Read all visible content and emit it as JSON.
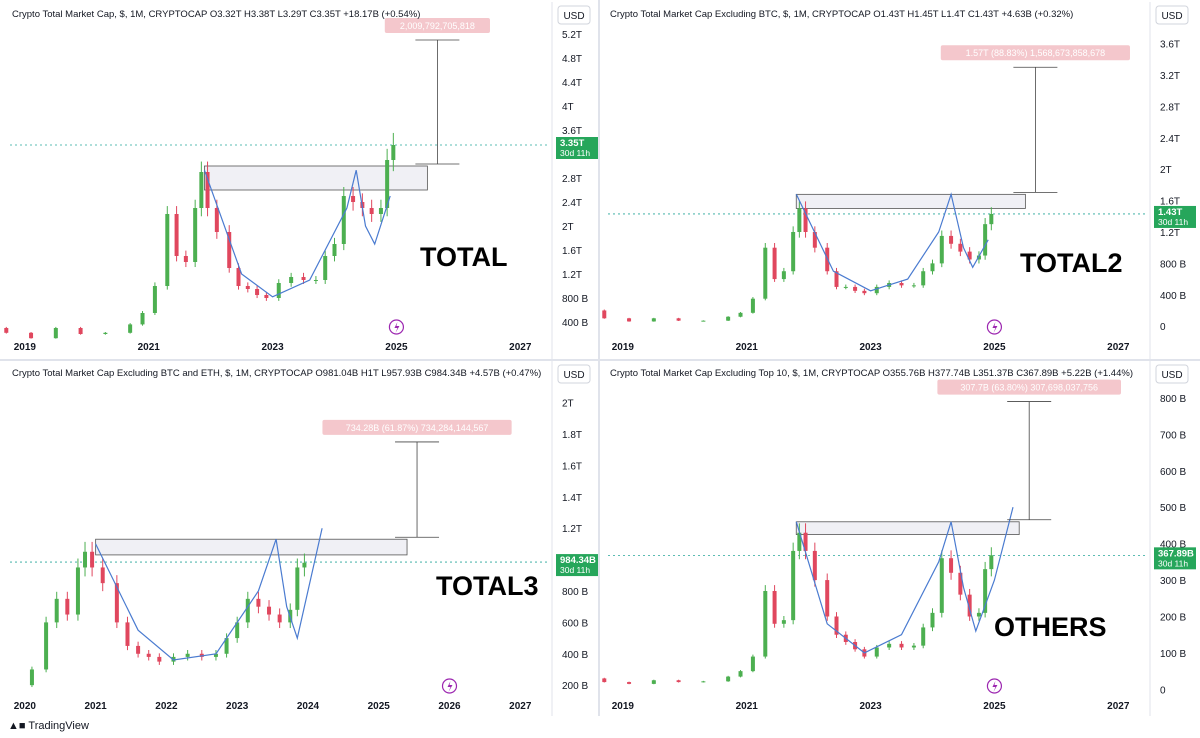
{
  "footer": {
    "brand": "TradingView"
  },
  "panels": [
    {
      "id": "p1",
      "header": "Crypto Total Market Cap, $, 1M, CRYPTOCAP  O3.32T  H3.38T  L3.29T  C3.35T  +18.17B (+0.54%)",
      "currency": "USD",
      "big_label": "TOTAL",
      "price_tag": "3.35T",
      "countdown": "30d 11h",
      "measure_label": "2,009,792,705,818"
    },
    {
      "id": "p2",
      "header": "Crypto Total Market Cap Excluding BTC, $, 1M, CRYPTOCAP  O1.43T  H1.45T  L1.4T  C1.43T  +4.63B (+0.32%)",
      "currency": "USD",
      "big_label": "TOTAL2",
      "price_tag": "1.43T",
      "countdown": "30d 11h",
      "measure_label": "1.57T (88.83%) 1,568,673,858,678"
    },
    {
      "id": "p3",
      "header": "Crypto Total Market Cap Excluding BTC and ETH, $, 1M, CRYPTOCAP  O981.04B  H1T  L957.93B  C984.34B  +4.57B (+0.47%)",
      "currency": "USD",
      "big_label": "TOTAL3",
      "price_tag": "984.34B",
      "countdown": "30d 11h",
      "measure_label": "734.28B (61.87%) 734,284,144,567"
    },
    {
      "id": "p4",
      "header": "Crypto Total Market Cap Excluding Top 10, $, 1M, CRYPTOCAP  O355.76B  H377.74B  L351.37B  C367.89B  +5.22B (+1.44%)",
      "currency": "USD",
      "big_label": "OTHERS",
      "price_tag": "367.89B",
      "countdown": "30d 11h",
      "measure_label": "307.7B (63.80%) 307,698,037,756"
    }
  ],
  "chart_data": [
    {
      "type": "candlestick",
      "title": "Crypto Total Market Cap, $, 1M, CRYPTOCAP",
      "label": "TOTAL",
      "x_ticks": [
        "2019",
        "2021",
        "2023",
        "2025",
        "2027"
      ],
      "y_ticks": [
        "400 B",
        "800 B",
        "1.2T",
        "1.6T",
        "2T",
        "2.4T",
        "2.8T",
        "3.2T",
        "3.6T",
        "4T",
        "4.4T",
        "4.8T",
        "5.2T"
      ],
      "ylim": [
        0.2,
        5.3
      ],
      "unit": "T",
      "last_price": 3.35,
      "target_price": 5.1,
      "zone": {
        "x_start": 2021.9,
        "x_end": 2025.5,
        "low": 2.6,
        "high": 3.0
      },
      "cup_curve": [
        [
          2021.9,
          2.93
        ],
        [
          2022.5,
          1.2
        ],
        [
          2023.0,
          0.82
        ],
        [
          2023.6,
          1.1
        ],
        [
          2024.2,
          2.3
        ],
        [
          2024.35,
          2.93
        ],
        [
          2024.5,
          2.0
        ],
        [
          2024.65,
          1.7
        ],
        [
          2024.9,
          2.5
        ]
      ],
      "points": [
        [
          2017.9,
          0.4
        ],
        [
          2018.3,
          0.3
        ],
        [
          2018.7,
          0.22
        ],
        [
          2019.1,
          0.13
        ],
        [
          2019.5,
          0.3
        ],
        [
          2019.9,
          0.2
        ],
        [
          2020.3,
          0.22
        ],
        [
          2020.7,
          0.36
        ],
        [
          2020.9,
          0.55
        ],
        [
          2021.1,
          1.0
        ],
        [
          2021.3,
          2.2
        ],
        [
          2021.45,
          1.5
        ],
        [
          2021.6,
          1.4
        ],
        [
          2021.75,
          2.3
        ],
        [
          2021.85,
          2.9
        ],
        [
          2021.95,
          2.3
        ],
        [
          2022.1,
          1.9
        ],
        [
          2022.3,
          1.3
        ],
        [
          2022.45,
          1.0
        ],
        [
          2022.6,
          0.95
        ],
        [
          2022.75,
          0.85
        ],
        [
          2022.9,
          0.8
        ],
        [
          2023.1,
          1.05
        ],
        [
          2023.3,
          1.15
        ],
        [
          2023.5,
          1.1
        ],
        [
          2023.7,
          1.1
        ],
        [
          2023.85,
          1.5
        ],
        [
          2024.0,
          1.7
        ],
        [
          2024.15,
          2.5
        ],
        [
          2024.3,
          2.4
        ],
        [
          2024.45,
          2.3
        ],
        [
          2024.6,
          2.2
        ],
        [
          2024.75,
          2.3
        ],
        [
          2024.85,
          3.1
        ],
        [
          2024.95,
          3.35
        ]
      ]
    },
    {
      "type": "candlestick",
      "title": "Crypto Total Market Cap Excluding BTC, $, 1M, CRYPTOCAP",
      "label": "TOTAL2",
      "x_ticks": [
        "2019",
        "2021",
        "2023",
        "2025",
        "2027"
      ],
      "y_ticks": [
        "0",
        "400 B",
        "800 B",
        "1.2T",
        "1.6T",
        "2T",
        "2.4T",
        "2.8T",
        "3.2T",
        "3.6T"
      ],
      "ylim": [
        -0.1,
        3.8
      ],
      "unit": "T",
      "last_price": 1.43,
      "target_price": 3.3,
      "zone": {
        "x_start": 2021.8,
        "x_end": 2025.5,
        "low": 1.5,
        "high": 1.68
      },
      "cup_curve": [
        [
          2021.8,
          1.68
        ],
        [
          2022.4,
          0.7
        ],
        [
          2023.0,
          0.45
        ],
        [
          2023.6,
          0.6
        ],
        [
          2024.1,
          1.2
        ],
        [
          2024.3,
          1.68
        ],
        [
          2024.5,
          1.0
        ],
        [
          2024.65,
          0.75
        ],
        [
          2024.9,
          1.1
        ]
      ],
      "points": [
        [
          2017.9,
          0.35
        ],
        [
          2018.3,
          0.2
        ],
        [
          2018.7,
          0.1
        ],
        [
          2019.1,
          0.06
        ],
        [
          2019.5,
          0.1
        ],
        [
          2019.9,
          0.07
        ],
        [
          2020.3,
          0.07
        ],
        [
          2020.7,
          0.12
        ],
        [
          2020.9,
          0.17
        ],
        [
          2021.1,
          0.35
        ],
        [
          2021.3,
          1.0
        ],
        [
          2021.45,
          0.6
        ],
        [
          2021.6,
          0.7
        ],
        [
          2021.75,
          1.2
        ],
        [
          2021.85,
          1.5
        ],
        [
          2021.95,
          1.2
        ],
        [
          2022.1,
          1.0
        ],
        [
          2022.3,
          0.7
        ],
        [
          2022.45,
          0.5
        ],
        [
          2022.6,
          0.5
        ],
        [
          2022.75,
          0.45
        ],
        [
          2022.9,
          0.42
        ],
        [
          2023.1,
          0.5
        ],
        [
          2023.3,
          0.55
        ],
        [
          2023.5,
          0.52
        ],
        [
          2023.7,
          0.52
        ],
        [
          2023.85,
          0.7
        ],
        [
          2024.0,
          0.8
        ],
        [
          2024.15,
          1.15
        ],
        [
          2024.3,
          1.05
        ],
        [
          2024.45,
          0.95
        ],
        [
          2024.6,
          0.85
        ],
        [
          2024.75,
          0.9
        ],
        [
          2024.85,
          1.3
        ],
        [
          2024.95,
          1.43
        ]
      ]
    },
    {
      "type": "candlestick",
      "title": "Crypto Total Market Cap Excluding BTC and ETH, $, 1M, CRYPTOCAP",
      "label": "TOTAL3",
      "x_ticks": [
        "2020",
        "2021",
        "2022",
        "2023",
        "2024",
        "2025",
        "2026",
        "2027"
      ],
      "y_ticks": [
        "200 B",
        "400 B",
        "600 B",
        "800 B",
        "1T",
        "1.2T",
        "1.4T",
        "1.6T",
        "1.8T",
        "2T"
      ],
      "ylim": [
        0.15,
        2.1
      ],
      "unit": "T",
      "last_price": 0.98434,
      "target_price": 1.75,
      "zone": {
        "x_start": 2021.0,
        "x_end": 2025.4,
        "low": 1.03,
        "high": 1.13
      },
      "cup_curve": [
        [
          2021.0,
          1.1
        ],
        [
          2021.6,
          0.55
        ],
        [
          2022.1,
          0.36
        ],
        [
          2022.7,
          0.4
        ],
        [
          2023.3,
          0.8
        ],
        [
          2023.55,
          1.13
        ],
        [
          2023.7,
          0.7
        ],
        [
          2023.85,
          0.5
        ],
        [
          2024.2,
          1.2
        ]
      ],
      "points": [
        [
          2019.9,
          0.2
        ],
        [
          2020.1,
          0.3
        ],
        [
          2020.3,
          0.6
        ],
        [
          2020.45,
          0.75
        ],
        [
          2020.6,
          0.65
        ],
        [
          2020.75,
          0.95
        ],
        [
          2020.85,
          1.05
        ],
        [
          2020.95,
          0.95
        ],
        [
          2021.1,
          0.85
        ],
        [
          2021.3,
          0.6
        ],
        [
          2021.45,
          0.45
        ],
        [
          2021.6,
          0.4
        ],
        [
          2021.75,
          0.38
        ],
        [
          2021.9,
          0.35
        ],
        [
          2022.1,
          0.38
        ],
        [
          2022.3,
          0.4
        ],
        [
          2022.5,
          0.38
        ],
        [
          2022.7,
          0.4
        ],
        [
          2022.85,
          0.5
        ],
        [
          2023.0,
          0.6
        ],
        [
          2023.15,
          0.75
        ],
        [
          2023.3,
          0.7
        ],
        [
          2023.45,
          0.65
        ],
        [
          2023.6,
          0.6
        ],
        [
          2023.75,
          0.68
        ],
        [
          2023.85,
          0.95
        ],
        [
          2023.95,
          0.98
        ]
      ]
    },
    {
      "type": "candlestick",
      "title": "Crypto Total Market Cap Excluding Top 10, $, 1M, CRYPTOCAP",
      "label": "OTHERS",
      "x_ticks": [
        "2019",
        "2021",
        "2023",
        "2025",
        "2027"
      ],
      "y_ticks": [
        "0",
        "100 B",
        "200 B",
        "300 B",
        "400 B",
        "500 B",
        "600 B",
        "700 B",
        "800 B"
      ],
      "ylim": [
        -10,
        830
      ],
      "unit": "B",
      "last_price": 367.89,
      "target_price": 790,
      "zone": {
        "x_start": 2021.8,
        "x_end": 2025.4,
        "low": 425,
        "high": 460
      },
      "cup_curve": [
        [
          2021.8,
          460
        ],
        [
          2022.3,
          180
        ],
        [
          2022.9,
          100
        ],
        [
          2023.5,
          150
        ],
        [
          2024.1,
          350
        ],
        [
          2024.3,
          460
        ],
        [
          2024.5,
          280
        ],
        [
          2024.7,
          160
        ],
        [
          2025.0,
          300
        ],
        [
          2025.3,
          500
        ]
      ],
      "points": [
        [
          2017.7,
          20
        ],
        [
          2017.9,
          50
        ],
        [
          2018.1,
          45
        ],
        [
          2018.3,
          30
        ],
        [
          2018.7,
          20
        ],
        [
          2019.1,
          15
        ],
        [
          2019.5,
          25
        ],
        [
          2019.9,
          20
        ],
        [
          2020.3,
          22
        ],
        [
          2020.7,
          35
        ],
        [
          2020.9,
          50
        ],
        [
          2021.1,
          90
        ],
        [
          2021.3,
          270
        ],
        [
          2021.45,
          180
        ],
        [
          2021.6,
          190
        ],
        [
          2021.75,
          380
        ],
        [
          2021.85,
          430
        ],
        [
          2021.95,
          380
        ],
        [
          2022.1,
          300
        ],
        [
          2022.3,
          200
        ],
        [
          2022.45,
          150
        ],
        [
          2022.6,
          130
        ],
        [
          2022.75,
          110
        ],
        [
          2022.9,
          90
        ],
        [
          2023.1,
          115
        ],
        [
          2023.3,
          125
        ],
        [
          2023.5,
          115
        ],
        [
          2023.7,
          120
        ],
        [
          2023.85,
          170
        ],
        [
          2024.0,
          210
        ],
        [
          2024.15,
          360
        ],
        [
          2024.3,
          320
        ],
        [
          2024.45,
          260
        ],
        [
          2024.6,
          200
        ],
        [
          2024.75,
          210
        ],
        [
          2024.85,
          330
        ],
        [
          2024.95,
          368
        ]
      ]
    }
  ]
}
